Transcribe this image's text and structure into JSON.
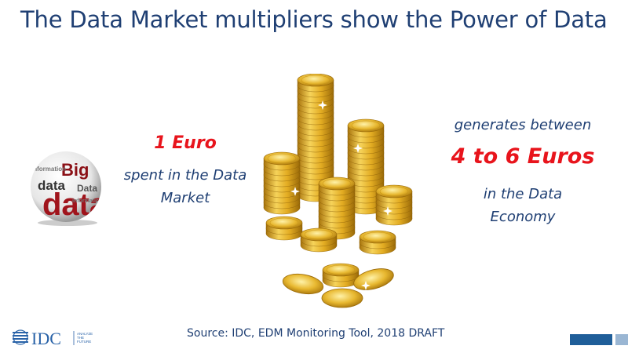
{
  "slide": {
    "title": "The Data Market multipliers show the Power of Data"
  },
  "left": {
    "amount": "1 Euro",
    "line1": "spent in the Data",
    "line2": "Market"
  },
  "right": {
    "line1": "generates between",
    "amount": "4 to 6 Euros",
    "line2": "in the Data",
    "line3": "Economy"
  },
  "sphere": {
    "words": [
      "Big",
      "data",
      "Data",
      "information"
    ]
  },
  "footer": {
    "logo_text": "IDC",
    "tagline": [
      "ANALYZE",
      "THE",
      "FUTURE"
    ],
    "source": "Source: IDC, EDM Monitoring Tool, 2018 DRAFT"
  },
  "colors": {
    "title": "#1f3f73",
    "highlight": "#e8141c",
    "coin_gold": "#e6b422",
    "footer_bar_dark": "#1f5e99",
    "footer_bar_light": "#9ab6d3"
  }
}
